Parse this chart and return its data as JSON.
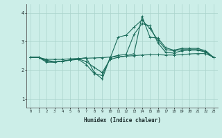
{
  "xlabel": "Humidex (Indice chaleur)",
  "bg_color": "#cceee8",
  "grid_color": "#aad4cc",
  "line_color": "#1a6b5a",
  "xlim": [
    -0.5,
    23.5
  ],
  "ylim": [
    0.7,
    4.3
  ],
  "xticks": [
    0,
    1,
    2,
    3,
    4,
    5,
    6,
    7,
    8,
    9,
    10,
    11,
    12,
    13,
    14,
    15,
    16,
    17,
    18,
    19,
    20,
    21,
    22,
    23
  ],
  "yticks": [
    1,
    2,
    3,
    4
  ],
  "series": {
    "line1": {
      "x": [
        0,
        1,
        2,
        3,
        4,
        5,
        6,
        7,
        8,
        9,
        10,
        11,
        12,
        13,
        14,
        15,
        16,
        17,
        18,
        19,
        20,
        21,
        22,
        23
      ],
      "y": [
        2.45,
        2.45,
        2.38,
        2.38,
        2.38,
        2.4,
        2.41,
        2.42,
        2.43,
        2.44,
        2.46,
        2.47,
        2.49,
        2.51,
        2.53,
        2.54,
        2.54,
        2.53,
        2.53,
        2.54,
        2.57,
        2.58,
        2.58,
        2.45
      ]
    },
    "line2": {
      "x": [
        0,
        1,
        2,
        3,
        4,
        5,
        6,
        7,
        8,
        9,
        10,
        11,
        12,
        13,
        14,
        15,
        16,
        17,
        18,
        19,
        20,
        21,
        22,
        23
      ],
      "y": [
        2.45,
        2.45,
        2.35,
        2.3,
        2.32,
        2.35,
        2.38,
        2.2,
        1.88,
        1.82,
        2.42,
        3.15,
        3.22,
        3.5,
        3.75,
        3.45,
        3.05,
        2.72,
        2.68,
        2.72,
        2.72,
        2.72,
        2.65,
        2.45
      ]
    },
    "line3": {
      "x": [
        0,
        1,
        2,
        3,
        4,
        5,
        6,
        7,
        8,
        9,
        10,
        11,
        12,
        13,
        14,
        15,
        16,
        17,
        18,
        19,
        20,
        21,
        22,
        23
      ],
      "y": [
        2.45,
        2.45,
        2.32,
        2.28,
        2.32,
        2.36,
        2.4,
        2.3,
        2.1,
        1.92,
        2.38,
        2.45,
        2.5,
        2.58,
        3.88,
        3.15,
        3.12,
        2.78,
        2.7,
        2.76,
        2.76,
        2.76,
        2.68,
        2.45
      ]
    },
    "line4": {
      "x": [
        0,
        1,
        2,
        3,
        4,
        5,
        6,
        7,
        8,
        9,
        10,
        11,
        12,
        13,
        14,
        15,
        16,
        17,
        18,
        19,
        20,
        21,
        22,
        23
      ],
      "y": [
        2.45,
        2.45,
        2.28,
        2.28,
        2.32,
        2.36,
        2.4,
        2.44,
        1.92,
        1.7,
        2.45,
        2.52,
        2.55,
        3.25,
        3.62,
        3.55,
        2.95,
        2.62,
        2.6,
        2.68,
        2.7,
        2.7,
        2.63,
        2.45
      ]
    }
  }
}
